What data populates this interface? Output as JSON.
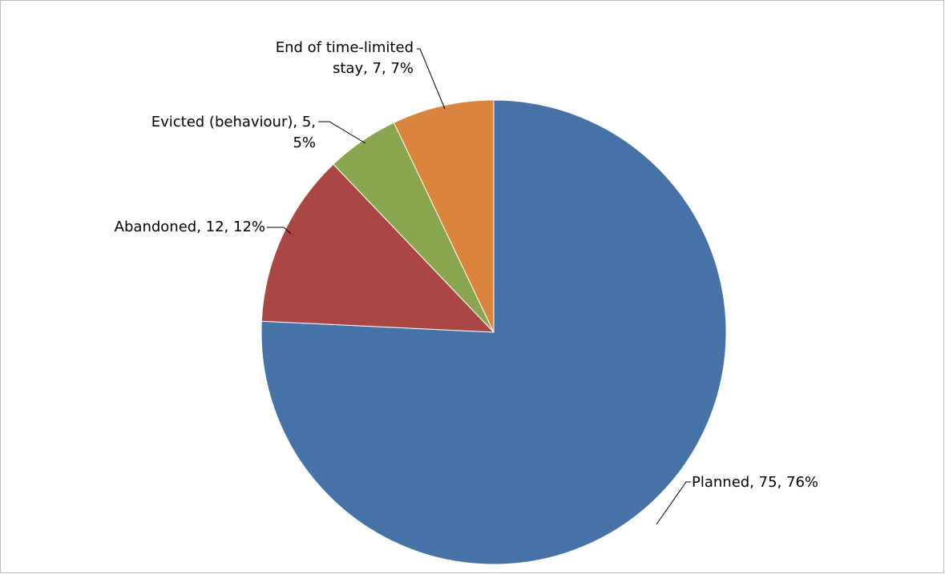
{
  "chart_data": {
    "type": "pie",
    "title": "",
    "slices": [
      {
        "category": "Planned",
        "value": 75,
        "percent": "76%",
        "color": "#4572A7",
        "label_lines": [
          "Planned, 75, 76%"
        ]
      },
      {
        "category": "Abandoned",
        "value": 12,
        "percent": "12%",
        "color": "#AA4643",
        "label_lines": [
          "Abandoned, 12, 12%"
        ]
      },
      {
        "category": "Evicted (behaviour)",
        "value": 5,
        "percent": "5%",
        "color": "#89A54E",
        "label_lines": [
          "Evicted (behaviour), 5,",
          "5%"
        ]
      },
      {
        "category": "End of time-limited stay",
        "value": 7,
        "percent": "7%",
        "color": "#DB843D",
        "label_lines": [
          "End of time-limited",
          "stay, 7, 7%"
        ]
      }
    ],
    "start_angle_deg": 0,
    "direction": "clockwise",
    "legend": "none",
    "data_labels": "category, value, percent"
  }
}
